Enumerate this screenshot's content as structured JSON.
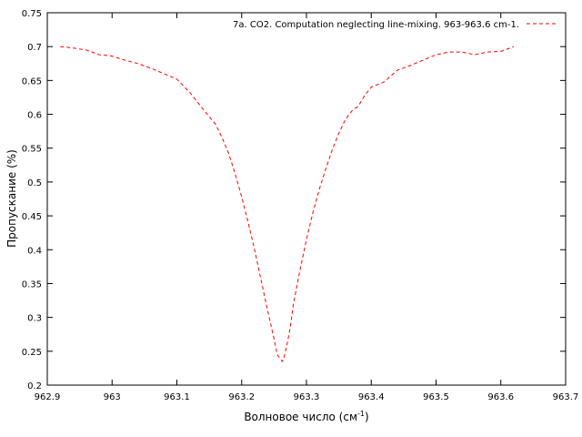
{
  "chart_data": {
    "type": "line",
    "title": "",
    "xlabel": "Волновое число (см",
    "xlabel_sup": "-1",
    "xlabel_close": ")",
    "ylabel": "Пропускание (%)",
    "xlim": [
      962.9,
      963.7
    ],
    "ylim": [
      0.2,
      0.75
    ],
    "xticks": [
      "962.9",
      "963",
      "963.1",
      "963.2",
      "963.3",
      "963.4",
      "963.5",
      "963.6",
      "963.7"
    ],
    "yticks": [
      "0.2",
      "0.25",
      "0.3",
      "0.35",
      "0.4",
      "0.45",
      "0.5",
      "0.55",
      "0.6",
      "0.65",
      "0.7",
      "0.75"
    ],
    "grid": false,
    "legend_position": "top-right",
    "series": [
      {
        "name": "7a. CO2. Computation neglecting line-mixing. 963-963.6 cm-1.",
        "color": "#ff0000",
        "style": "dashed",
        "x": [
          962.92,
          962.94,
          962.96,
          962.98,
          963.0,
          963.02,
          963.04,
          963.06,
          963.08,
          963.1,
          963.12,
          963.14,
          963.16,
          963.17,
          963.18,
          963.19,
          963.2,
          963.21,
          963.22,
          963.23,
          963.24,
          963.25,
          963.255,
          963.26,
          963.263,
          963.265,
          963.27,
          963.275,
          963.28,
          963.29,
          963.3,
          963.31,
          963.32,
          963.33,
          963.34,
          963.35,
          963.36,
          963.37,
          963.38,
          963.39,
          963.4,
          963.42,
          963.44,
          963.46,
          963.48,
          963.5,
          963.52,
          963.54,
          963.56,
          963.58,
          963.6,
          963.62
        ],
        "y": [
          0.7,
          0.698,
          0.695,
          0.688,
          0.686,
          0.68,
          0.675,
          0.668,
          0.66,
          0.652,
          0.632,
          0.608,
          0.585,
          0.565,
          0.542,
          0.512,
          0.478,
          0.44,
          0.4,
          0.355,
          0.31,
          0.268,
          0.245,
          0.238,
          0.235,
          0.24,
          0.26,
          0.285,
          0.32,
          0.37,
          0.415,
          0.455,
          0.49,
          0.52,
          0.548,
          0.572,
          0.592,
          0.605,
          0.612,
          0.628,
          0.64,
          0.648,
          0.665,
          0.672,
          0.68,
          0.688,
          0.692,
          0.692,
          0.688,
          0.692,
          0.693,
          0.7
        ]
      }
    ]
  }
}
